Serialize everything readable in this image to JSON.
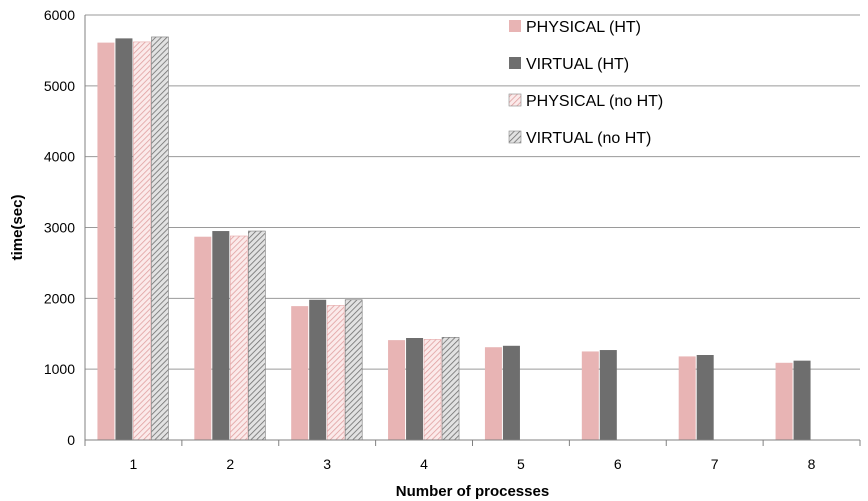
{
  "chart_data": {
    "type": "bar",
    "title": "",
    "xlabel": "Number of processes",
    "ylabel": "time(sec)",
    "ylim": [
      0,
      6000
    ],
    "yticks": [
      0,
      1000,
      2000,
      3000,
      4000,
      5000,
      6000
    ],
    "categories": [
      "1",
      "2",
      "3",
      "4",
      "5",
      "6",
      "7",
      "8"
    ],
    "grid": true,
    "legend_position": "top-right",
    "series": [
      {
        "name": "PHYSICAL (HT)",
        "color": "#e8b4b4",
        "pattern": "solid",
        "values": [
          5610,
          2870,
          1890,
          1410,
          1310,
          1250,
          1180,
          1090
        ]
      },
      {
        "name": "VIRTUAL (HT)",
        "color": "#6e6e6e",
        "pattern": "solid",
        "values": [
          5670,
          2950,
          1980,
          1440,
          1330,
          1270,
          1200,
          1120
        ]
      },
      {
        "name": "PHYSICAL (no HT)",
        "color": "#e8b4b4",
        "pattern": "hatch",
        "values": [
          5620,
          2880,
          1900,
          1420,
          null,
          null,
          null,
          null
        ]
      },
      {
        "name": "VIRTUAL (no HT)",
        "color": "#8a8a8a",
        "pattern": "hatch",
        "values": [
          5690,
          2950,
          1980,
          1450,
          null,
          null,
          null,
          null
        ]
      }
    ]
  }
}
